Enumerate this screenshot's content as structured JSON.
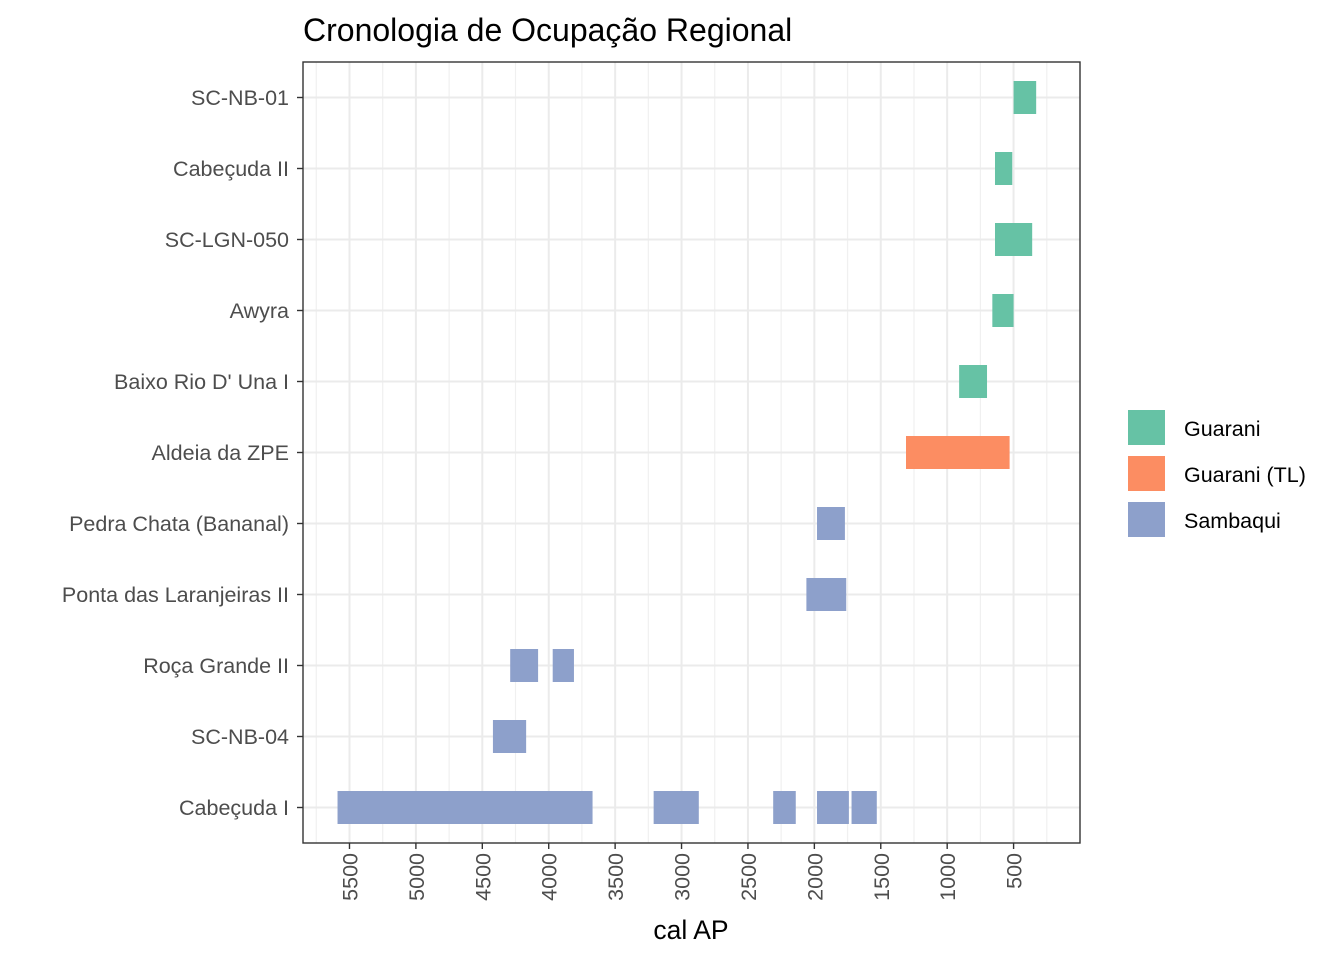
{
  "chart_data": {
    "type": "bar",
    "subtype": "horizontal-range (gantt)",
    "title": "Cronologia de Ocupação Regional",
    "xlabel": "cal AP",
    "ylabel": "",
    "x_reversed": true,
    "xlim": [
      5850,
      0
    ],
    "x_ticks": [
      5500,
      5000,
      4500,
      4000,
      3500,
      3000,
      2500,
      2000,
      1500,
      1000,
      500
    ],
    "grid": true,
    "legend_position": "right",
    "categories": [
      "SC-NB-01",
      "Cabeçuda II",
      "SC-LGN-050",
      "Awyra",
      "Baixo Rio D' Una I",
      "Aldeia da ZPE",
      "Pedra Chata (Bananal)",
      "Ponta das Laranjeiras II",
      "Roça Grande II",
      "SC-NB-04",
      "Cabeçuda I"
    ],
    "series": [
      {
        "name": "Guarani",
        "color": "#66c2a5"
      },
      {
        "name": "Guarani (TL)",
        "color": "#fc8d62"
      },
      {
        "name": "Sambaqui",
        "color": "#8da0cb"
      }
    ],
    "bars": [
      {
        "site": "SC-NB-01",
        "series": "Guarani",
        "start": 500,
        "end": 330
      },
      {
        "site": "Cabeçuda II",
        "series": "Guarani",
        "start": 640,
        "end": 510
      },
      {
        "site": "SC-LGN-050",
        "series": "Guarani",
        "start": 640,
        "end": 360
      },
      {
        "site": "Awyra",
        "series": "Guarani",
        "start": 660,
        "end": 500
      },
      {
        "site": "Baixo Rio D' Una I",
        "series": "Guarani",
        "start": 910,
        "end": 700
      },
      {
        "site": "Aldeia da ZPE",
        "series": "Guarani (TL)",
        "start": 1310,
        "end": 530
      },
      {
        "site": "Pedra Chata (Bananal)",
        "series": "Sambaqui",
        "start": 1980,
        "end": 1770
      },
      {
        "site": "Ponta das Laranjeiras II",
        "series": "Sambaqui",
        "start": 2060,
        "end": 1760
      },
      {
        "site": "Roça Grande II",
        "series": "Sambaqui",
        "start": 4290,
        "end": 4080
      },
      {
        "site": "Roça Grande II",
        "series": "Sambaqui",
        "start": 3970,
        "end": 3810
      },
      {
        "site": "SC-NB-04",
        "series": "Sambaqui",
        "start": 4420,
        "end": 4170
      },
      {
        "site": "Cabeçuda I",
        "series": "Sambaqui",
        "start": 5590,
        "end": 3670
      },
      {
        "site": "Cabeçuda I",
        "series": "Sambaqui",
        "start": 3210,
        "end": 2870
      },
      {
        "site": "Cabeçuda I",
        "series": "Sambaqui",
        "start": 2310,
        "end": 2140
      },
      {
        "site": "Cabeçuda I",
        "series": "Sambaqui",
        "start": 1980,
        "end": 1740
      },
      {
        "site": "Cabeçuda I",
        "series": "Sambaqui",
        "start": 1720,
        "end": 1530
      }
    ]
  }
}
